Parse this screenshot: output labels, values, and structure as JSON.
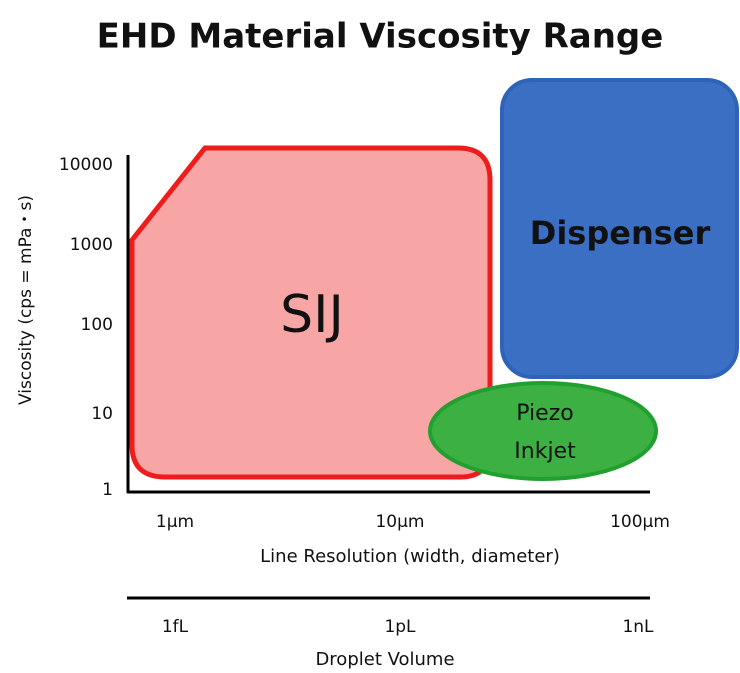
{
  "title": "EHD Material Viscosity Range",
  "y_axis": {
    "label": "Viscosity (cps = mPa・s)",
    "ticks": [
      "10000",
      "1000",
      "100",
      "10",
      "1"
    ]
  },
  "x_axis": {
    "label": "Line Resolution (width, diameter)",
    "ticks": [
      "1μm",
      "10μm",
      "100μm"
    ]
  },
  "x_axis_2": {
    "label": "Droplet Volume",
    "ticks": [
      "1fL",
      "1pL",
      "1nL"
    ]
  },
  "regions": [
    {
      "label": "SIJ"
    },
    {
      "label": "Dispenser"
    },
    {
      "label_lines": [
        "Piezo",
        "Inkjet"
      ]
    }
  ]
}
